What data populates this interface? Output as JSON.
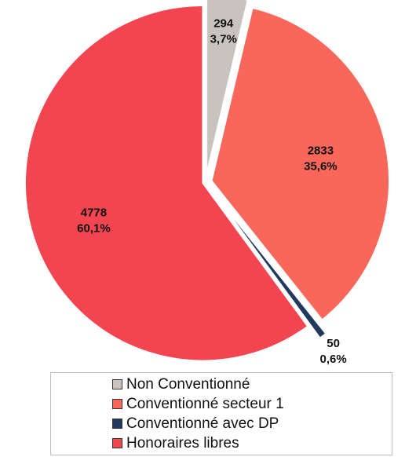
{
  "chart_data": {
    "type": "pie",
    "title": "",
    "slices": [
      {
        "name": "Non Conventionné",
        "value": 294,
        "value_label": "294",
        "percent_label": "3,7%",
        "color": "#c8c3bf"
      },
      {
        "name": "Conventionné secteur 1",
        "value": 2833,
        "value_label": "2833",
        "percent_label": "35,6%",
        "color": "#f9675a"
      },
      {
        "name": "Conventionné avec DP",
        "value": 50,
        "value_label": "50",
        "percent_label": "0,6%",
        "color": "#1f3a5c"
      },
      {
        "name": "Honoraires libres",
        "value": 4778,
        "value_label": "4778",
        "percent_label": "60,1%",
        "color": "#f2454f"
      }
    ],
    "exploded": true,
    "legend_position": "bottom"
  }
}
